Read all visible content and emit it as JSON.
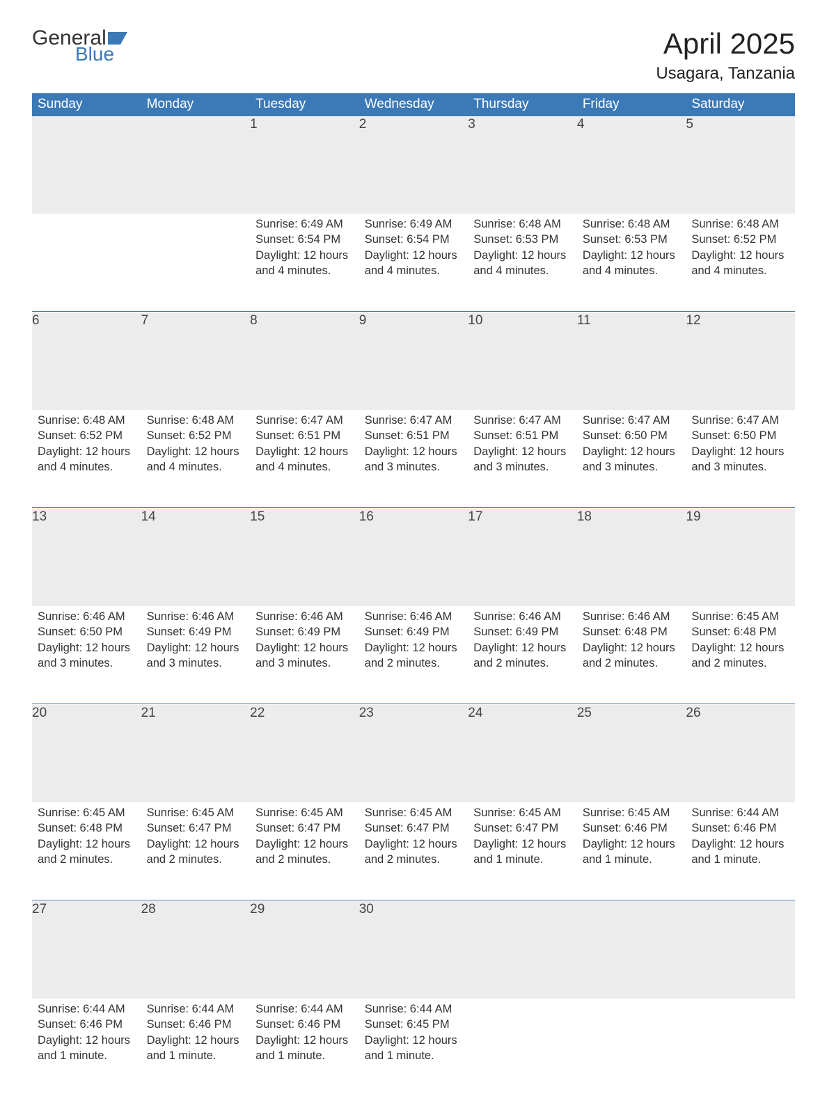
{
  "brand": {
    "word1": "General",
    "word2": "Blue",
    "flag_color": "#3b79b7"
  },
  "title": "April 2025",
  "location": "Usagara, Tanzania",
  "colors": {
    "header_bg": "#3b79b7",
    "header_text": "#ffffff",
    "daynum_bg": "#ececec",
    "text": "#333333",
    "page_bg": "#ffffff",
    "rule": "#3b79b7"
  },
  "day_headers": [
    "Sunday",
    "Monday",
    "Tuesday",
    "Wednesday",
    "Thursday",
    "Friday",
    "Saturday"
  ],
  "weeks": [
    [
      {
        "n": "",
        "sunrise": "",
        "sunset": "",
        "daylight": ""
      },
      {
        "n": "",
        "sunrise": "",
        "sunset": "",
        "daylight": ""
      },
      {
        "n": "1",
        "sunrise": "Sunrise: 6:49 AM",
        "sunset": "Sunset: 6:54 PM",
        "daylight": "Daylight: 12 hours and 4 minutes."
      },
      {
        "n": "2",
        "sunrise": "Sunrise: 6:49 AM",
        "sunset": "Sunset: 6:54 PM",
        "daylight": "Daylight: 12 hours and 4 minutes."
      },
      {
        "n": "3",
        "sunrise": "Sunrise: 6:48 AM",
        "sunset": "Sunset: 6:53 PM",
        "daylight": "Daylight: 12 hours and 4 minutes."
      },
      {
        "n": "4",
        "sunrise": "Sunrise: 6:48 AM",
        "sunset": "Sunset: 6:53 PM",
        "daylight": "Daylight: 12 hours and 4 minutes."
      },
      {
        "n": "5",
        "sunrise": "Sunrise: 6:48 AM",
        "sunset": "Sunset: 6:52 PM",
        "daylight": "Daylight: 12 hours and 4 minutes."
      }
    ],
    [
      {
        "n": "6",
        "sunrise": "Sunrise: 6:48 AM",
        "sunset": "Sunset: 6:52 PM",
        "daylight": "Daylight: 12 hours and 4 minutes."
      },
      {
        "n": "7",
        "sunrise": "Sunrise: 6:48 AM",
        "sunset": "Sunset: 6:52 PM",
        "daylight": "Daylight: 12 hours and 4 minutes."
      },
      {
        "n": "8",
        "sunrise": "Sunrise: 6:47 AM",
        "sunset": "Sunset: 6:51 PM",
        "daylight": "Daylight: 12 hours and 4 minutes."
      },
      {
        "n": "9",
        "sunrise": "Sunrise: 6:47 AM",
        "sunset": "Sunset: 6:51 PM",
        "daylight": "Daylight: 12 hours and 3 minutes."
      },
      {
        "n": "10",
        "sunrise": "Sunrise: 6:47 AM",
        "sunset": "Sunset: 6:51 PM",
        "daylight": "Daylight: 12 hours and 3 minutes."
      },
      {
        "n": "11",
        "sunrise": "Sunrise: 6:47 AM",
        "sunset": "Sunset: 6:50 PM",
        "daylight": "Daylight: 12 hours and 3 minutes."
      },
      {
        "n": "12",
        "sunrise": "Sunrise: 6:47 AM",
        "sunset": "Sunset: 6:50 PM",
        "daylight": "Daylight: 12 hours and 3 minutes."
      }
    ],
    [
      {
        "n": "13",
        "sunrise": "Sunrise: 6:46 AM",
        "sunset": "Sunset: 6:50 PM",
        "daylight": "Daylight: 12 hours and 3 minutes."
      },
      {
        "n": "14",
        "sunrise": "Sunrise: 6:46 AM",
        "sunset": "Sunset: 6:49 PM",
        "daylight": "Daylight: 12 hours and 3 minutes."
      },
      {
        "n": "15",
        "sunrise": "Sunrise: 6:46 AM",
        "sunset": "Sunset: 6:49 PM",
        "daylight": "Daylight: 12 hours and 3 minutes."
      },
      {
        "n": "16",
        "sunrise": "Sunrise: 6:46 AM",
        "sunset": "Sunset: 6:49 PM",
        "daylight": "Daylight: 12 hours and 2 minutes."
      },
      {
        "n": "17",
        "sunrise": "Sunrise: 6:46 AM",
        "sunset": "Sunset: 6:49 PM",
        "daylight": "Daylight: 12 hours and 2 minutes."
      },
      {
        "n": "18",
        "sunrise": "Sunrise: 6:46 AM",
        "sunset": "Sunset: 6:48 PM",
        "daylight": "Daylight: 12 hours and 2 minutes."
      },
      {
        "n": "19",
        "sunrise": "Sunrise: 6:45 AM",
        "sunset": "Sunset: 6:48 PM",
        "daylight": "Daylight: 12 hours and 2 minutes."
      }
    ],
    [
      {
        "n": "20",
        "sunrise": "Sunrise: 6:45 AM",
        "sunset": "Sunset: 6:48 PM",
        "daylight": "Daylight: 12 hours and 2 minutes."
      },
      {
        "n": "21",
        "sunrise": "Sunrise: 6:45 AM",
        "sunset": "Sunset: 6:47 PM",
        "daylight": "Daylight: 12 hours and 2 minutes."
      },
      {
        "n": "22",
        "sunrise": "Sunrise: 6:45 AM",
        "sunset": "Sunset: 6:47 PM",
        "daylight": "Daylight: 12 hours and 2 minutes."
      },
      {
        "n": "23",
        "sunrise": "Sunrise: 6:45 AM",
        "sunset": "Sunset: 6:47 PM",
        "daylight": "Daylight: 12 hours and 2 minutes."
      },
      {
        "n": "24",
        "sunrise": "Sunrise: 6:45 AM",
        "sunset": "Sunset: 6:47 PM",
        "daylight": "Daylight: 12 hours and 1 minute."
      },
      {
        "n": "25",
        "sunrise": "Sunrise: 6:45 AM",
        "sunset": "Sunset: 6:46 PM",
        "daylight": "Daylight: 12 hours and 1 minute."
      },
      {
        "n": "26",
        "sunrise": "Sunrise: 6:44 AM",
        "sunset": "Sunset: 6:46 PM",
        "daylight": "Daylight: 12 hours and 1 minute."
      }
    ],
    [
      {
        "n": "27",
        "sunrise": "Sunrise: 6:44 AM",
        "sunset": "Sunset: 6:46 PM",
        "daylight": "Daylight: 12 hours and 1 minute."
      },
      {
        "n": "28",
        "sunrise": "Sunrise: 6:44 AM",
        "sunset": "Sunset: 6:46 PM",
        "daylight": "Daylight: 12 hours and 1 minute."
      },
      {
        "n": "29",
        "sunrise": "Sunrise: 6:44 AM",
        "sunset": "Sunset: 6:46 PM",
        "daylight": "Daylight: 12 hours and 1 minute."
      },
      {
        "n": "30",
        "sunrise": "Sunrise: 6:44 AM",
        "sunset": "Sunset: 6:45 PM",
        "daylight": "Daylight: 12 hours and 1 minute."
      },
      {
        "n": "",
        "sunrise": "",
        "sunset": "",
        "daylight": ""
      },
      {
        "n": "",
        "sunrise": "",
        "sunset": "",
        "daylight": ""
      },
      {
        "n": "",
        "sunrise": "",
        "sunset": "",
        "daylight": ""
      }
    ]
  ]
}
